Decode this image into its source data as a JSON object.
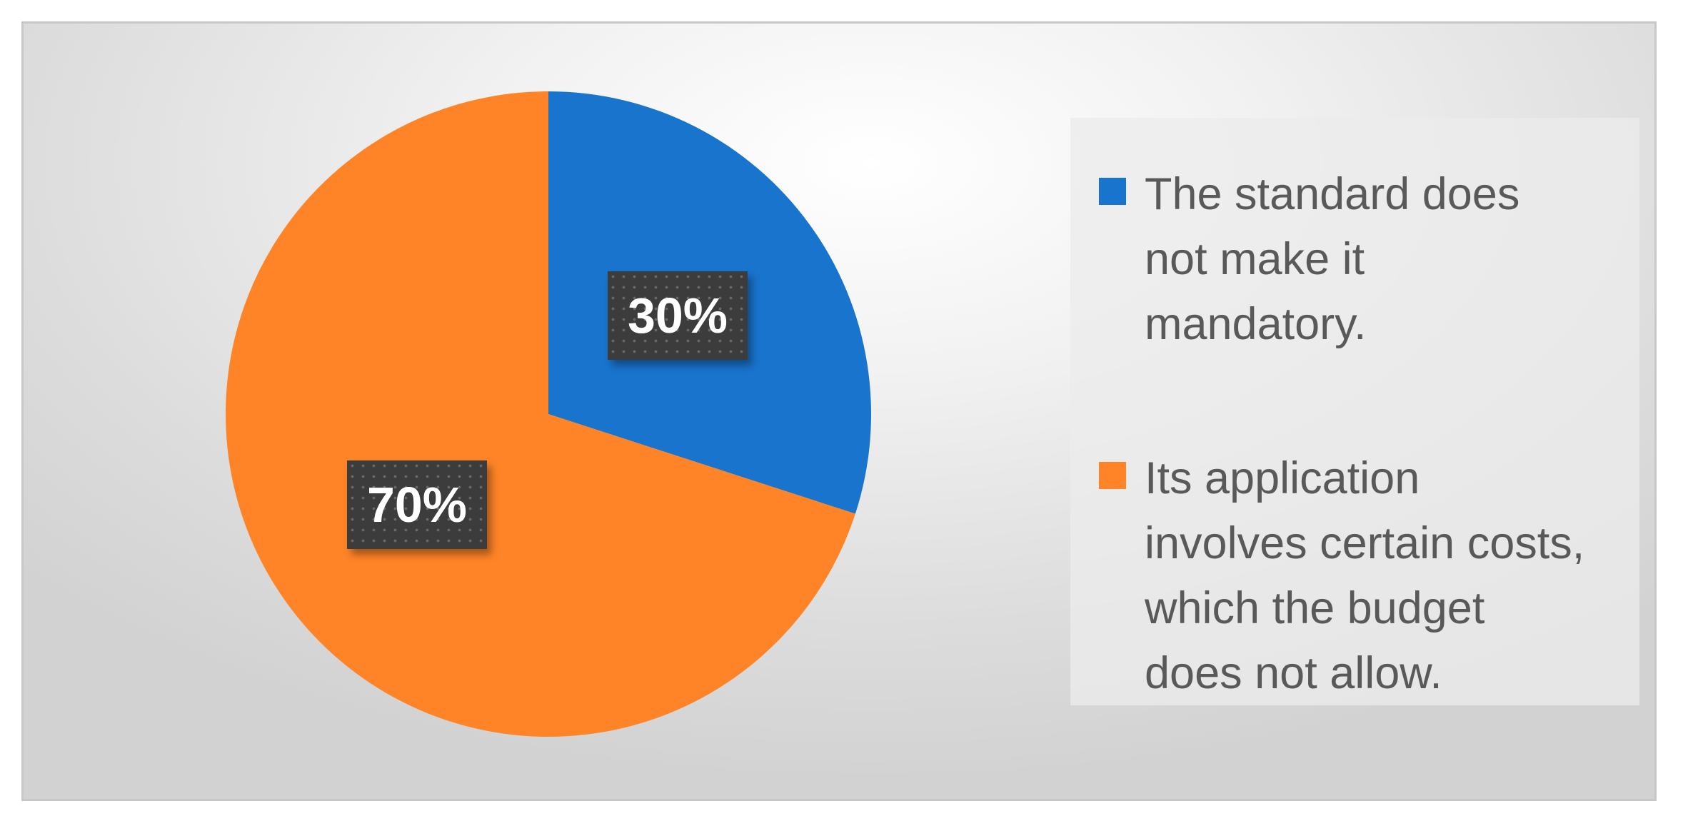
{
  "chart_data": {
    "type": "pie",
    "categories": [
      "The standard does not make it mandatory.",
      "Its application involves certain costs, which the budget does not allow."
    ],
    "values": [
      30,
      70
    ],
    "data_labels": [
      "30%",
      "70%"
    ],
    "colors": [
      "#1874CD",
      "#FF8427"
    ],
    "legend_placement": "right",
    "legend": [
      {
        "label": "The standard does\nnot make it\nmandatory.",
        "color": "#1874CD"
      },
      {
        "label": "Its application\ninvolves certain costs,\nwhich the budget\ndoes not allow.",
        "color": "#FF8427"
      }
    ]
  }
}
